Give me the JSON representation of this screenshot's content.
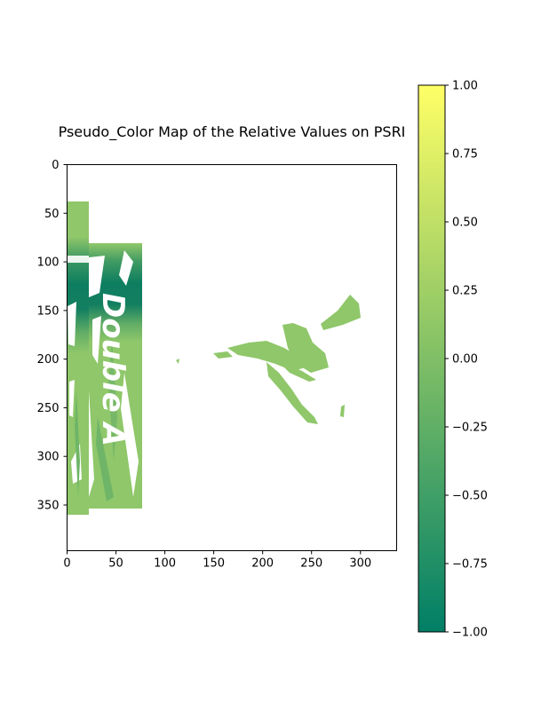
{
  "chart_data": [
    {
      "type": "heatmap",
      "title": "Pseudo_Color Map of the Relative Values on PSRI",
      "xlabel": "",
      "ylabel": "",
      "xlim": [
        0,
        337
      ],
      "ylim": [
        397,
        0
      ],
      "x_ticks": [
        0,
        50,
        100,
        150,
        200,
        250,
        300
      ],
      "y_ticks": [
        0,
        50,
        100,
        150,
        200,
        250,
        300,
        350
      ],
      "x_tick_labels": [
        "0",
        "50",
        "100",
        "150",
        "200",
        "250",
        "300"
      ],
      "y_tick_labels": [
        "0",
        "50",
        "100",
        "150",
        "200",
        "250",
        "300",
        "350"
      ],
      "grid": false,
      "image_text": "Double A",
      "colorbar": {
        "range": [
          -1.0,
          1.0
        ],
        "ticks": [
          1.0,
          0.75,
          0.5,
          0.25,
          0.0,
          -0.25,
          -0.5,
          -0.75,
          -1.0
        ],
        "tick_labels": [
          "1.00",
          "0.75",
          "0.50",
          "0.25",
          "0.00",
          "−0.25",
          "−0.50",
          "−0.75",
          "−1.00"
        ],
        "colors": [
          "#007f66",
          "#80bf66",
          "#ffff66"
        ]
      },
      "colors": {
        "dominant": "#8fc76a",
        "dark_band": "#0e7e60",
        "mid": "#3e9a62"
      }
    }
  ]
}
